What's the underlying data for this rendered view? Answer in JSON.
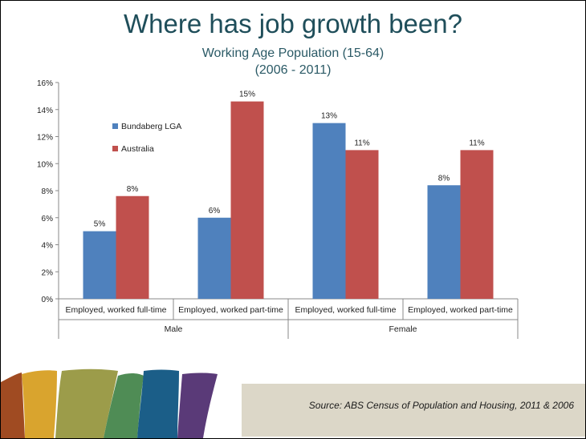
{
  "slide": {
    "title": "Where has job growth been?",
    "subtitle_line1": "Working Age Population (15-64)",
    "subtitle_line2": "(2006 - 2011)",
    "source": "Source: ABS Census of Population and Housing, 2011 & 2006"
  },
  "chart_data": {
    "type": "bar",
    "title": "",
    "xlabel": "",
    "ylabel": "",
    "ylim": [
      0,
      16
    ],
    "yticks": [
      "0%",
      "2%",
      "4%",
      "6%",
      "8%",
      "10%",
      "12%",
      "14%",
      "16%"
    ],
    "grid": false,
    "legend_position": "upper-left",
    "categories": [
      "Employed, worked full-time",
      "Employed, worked part-time",
      "Employed, worked full-time",
      "Employed, worked part-time"
    ],
    "groups": [
      {
        "label": "Male",
        "span": [
          0,
          1
        ]
      },
      {
        "label": "Female",
        "span": [
          2,
          3
        ]
      }
    ],
    "series": [
      {
        "name": "Bundaberg LGA",
        "color": "#4f81bd",
        "values": [
          5,
          6,
          13,
          8.4
        ],
        "labels": [
          "5%",
          "6%",
          "13%",
          "8%"
        ]
      },
      {
        "name": "Australia",
        "color": "#c0504d",
        "values": [
          7.6,
          14.6,
          11,
          11
        ],
        "labels": [
          "8%",
          "15%",
          "11%",
          "11%"
        ]
      }
    ]
  },
  "decor": {
    "stripe_colors": [
      "#a04b22",
      "#d9a42e",
      "#9c9c4a",
      "#4f8c55",
      "#1b5e88",
      "#5a3a78"
    ]
  }
}
